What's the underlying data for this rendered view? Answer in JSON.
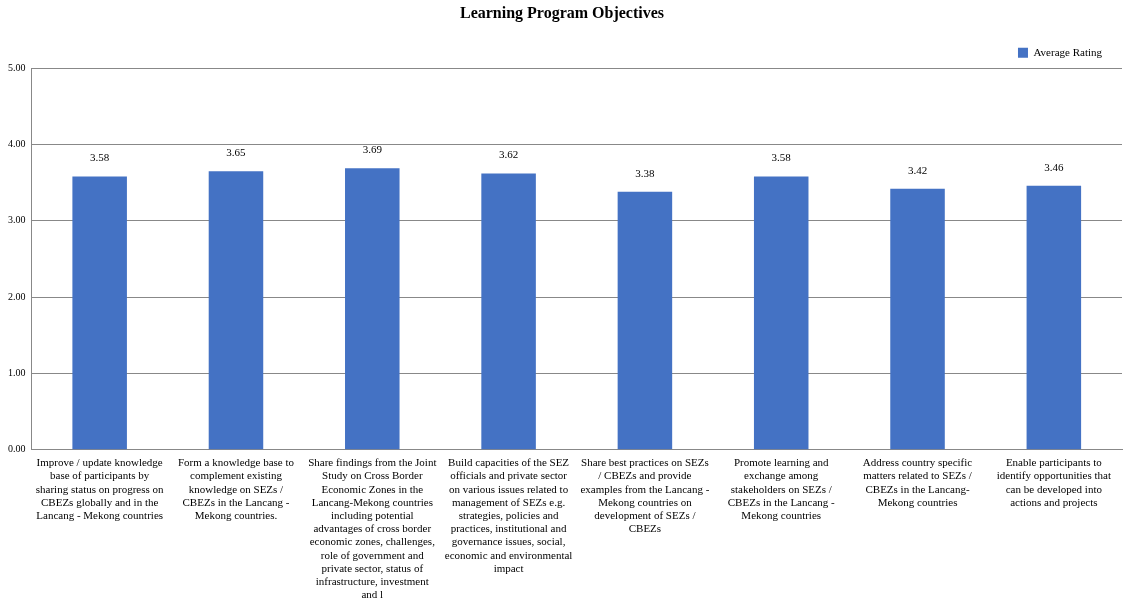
{
  "chart_data": {
    "type": "bar",
    "title": "Learning Program Objectives",
    "categories": [
      "Improve / update knowledge base of participants by sharing status on progress on CBEZs globally and in the Lancang - Mekong countries",
      "Form a knowledge base to complement existing knowledge on SEZs / CBEZs in the Lancang - Mekong countries.",
      "Share findings from the Joint Study on Cross Border Economic Zones in the Lancang-Mekong countries including potential advantages of cross border economic zones, challenges, role of government and private sector, status of infrastructure, investment and l",
      "Build capacities of the SEZ officials and private sector on various issues related to management of SEZs e.g. strategies, policies and practices, institutional and governance issues, social, economic and environmental impact",
      "Share best practices on SEZs / CBEZs and provide examples from the Lancang - Mekong countries on development of SEZs / CBEZs",
      "Promote learning and exchange among stakeholders on SEZs / CBEZs in the Lancang - Mekong countries",
      "Address country specific matters related to SEZs / CBEZs in the Lancang- Mekong countries",
      "Enable participants to identify opportunities that can be developed into actions and projects"
    ],
    "series": [
      {
        "name": "Average Rating",
        "color": "#4472c4",
        "values": [
          3.58,
          3.65,
          3.69,
          3.62,
          3.38,
          3.58,
          3.42,
          3.46
        ]
      }
    ],
    "ylim": [
      0,
      5
    ],
    "yticks": [
      {
        "value": 0,
        "label": "0.00"
      },
      {
        "value": 1,
        "label": "1.00"
      },
      {
        "value": 2,
        "label": "2.00"
      },
      {
        "value": 3,
        "label": "3.00"
      },
      {
        "value": 4,
        "label": "4.00"
      },
      {
        "value": 5,
        "label": "5.00"
      }
    ],
    "grid": "y",
    "legend": "top right",
    "data_labels": true
  }
}
